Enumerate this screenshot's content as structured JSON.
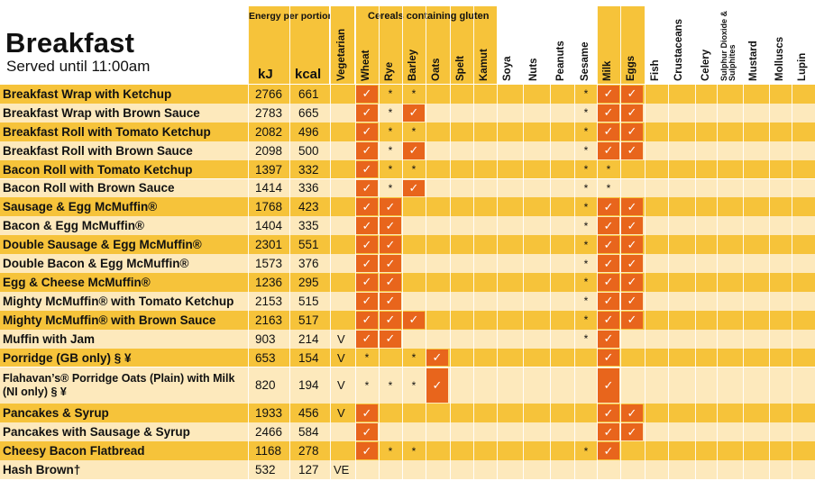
{
  "page": {
    "title": "Breakfast",
    "subtitle": "Served until 11:00am",
    "energy_header": "Energy per portion",
    "gluten_header": "Cereals containing gluten",
    "kj_label": "kJ",
    "kcal_label": "kcal",
    "vegetarian_label": "Vegetarian"
  },
  "allergens": [
    "Wheat",
    "Rye",
    "Barley",
    "Oats",
    "Spelt",
    "Kamut",
    "Soya",
    "Nuts",
    "Peanuts",
    "Sesame",
    "Milk",
    "Eggs",
    "Fish",
    "Crustaceans",
    "Celery",
    "Sulphur Dioxide & Sulphites",
    "Mustard",
    "Molluscs",
    "Lupin"
  ],
  "symbols": {
    "tick": "✓",
    "star": "*"
  },
  "items": [
    {
      "name": "Breakfast Wrap with Ketchup",
      "kj": "2766",
      "kcal": "661",
      "veg": "",
      "marks": [
        "T",
        "*",
        "*",
        "",
        "",
        "",
        "",
        "",
        "",
        "*",
        "T",
        "T",
        "",
        "",
        "",
        "",
        "",
        "",
        ""
      ]
    },
    {
      "name": "Breakfast Wrap with Brown Sauce",
      "kj": "2783",
      "kcal": "665",
      "veg": "",
      "marks": [
        "T",
        "*",
        "T",
        "",
        "",
        "",
        "",
        "",
        "",
        "*",
        "T",
        "T",
        "",
        "",
        "",
        "",
        "",
        "",
        ""
      ]
    },
    {
      "name": "Breakfast Roll with Tomato Ketchup",
      "kj": "2082",
      "kcal": "496",
      "veg": "",
      "marks": [
        "T",
        "*",
        "*",
        "",
        "",
        "",
        "",
        "",
        "",
        "*",
        "T",
        "T",
        "",
        "",
        "",
        "",
        "",
        "",
        ""
      ]
    },
    {
      "name": "Breakfast Roll with Brown Sauce",
      "kj": "2098",
      "kcal": "500",
      "veg": "",
      "marks": [
        "T",
        "*",
        "T",
        "",
        "",
        "",
        "",
        "",
        "",
        "*",
        "T",
        "T",
        "",
        "",
        "",
        "",
        "",
        "",
        ""
      ]
    },
    {
      "name": "Bacon Roll with Tomato Ketchup",
      "kj": "1397",
      "kcal": "332",
      "veg": "",
      "marks": [
        "T",
        "*",
        "*",
        "",
        "",
        "",
        "",
        "",
        "",
        "*",
        "*",
        "",
        "",
        "",
        "",
        "",
        "",
        "",
        ""
      ]
    },
    {
      "name": "Bacon Roll with Brown Sauce",
      "kj": "1414",
      "kcal": "336",
      "veg": "",
      "marks": [
        "T",
        "*",
        "T",
        "",
        "",
        "",
        "",
        "",
        "",
        "*",
        "*",
        "",
        "",
        "",
        "",
        "",
        "",
        "",
        ""
      ]
    },
    {
      "name": "Sausage & Egg McMuffin®",
      "kj": "1768",
      "kcal": "423",
      "veg": "",
      "marks": [
        "T",
        "T",
        "",
        "",
        "",
        "",
        "",
        "",
        "",
        "*",
        "T",
        "T",
        "",
        "",
        "",
        "",
        "",
        "",
        ""
      ]
    },
    {
      "name": "Bacon & Egg McMuffin®",
      "kj": "1404",
      "kcal": "335",
      "veg": "",
      "marks": [
        "T",
        "T",
        "",
        "",
        "",
        "",
        "",
        "",
        "",
        "*",
        "T",
        "T",
        "",
        "",
        "",
        "",
        "",
        "",
        ""
      ]
    },
    {
      "name": "Double Sausage & Egg McMuffin®",
      "kj": "2301",
      "kcal": "551",
      "veg": "",
      "marks": [
        "T",
        "T",
        "",
        "",
        "",
        "",
        "",
        "",
        "",
        "*",
        "T",
        "T",
        "",
        "",
        "",
        "",
        "",
        "",
        ""
      ]
    },
    {
      "name": "Double Bacon & Egg McMuffin®",
      "kj": "1573",
      "kcal": "376",
      "veg": "",
      "marks": [
        "T",
        "T",
        "",
        "",
        "",
        "",
        "",
        "",
        "",
        "*",
        "T",
        "T",
        "",
        "",
        "",
        "",
        "",
        "",
        ""
      ]
    },
    {
      "name": "Egg & Cheese McMuffin®",
      "kj": "1236",
      "kcal": "295",
      "veg": "",
      "marks": [
        "T",
        "T",
        "",
        "",
        "",
        "",
        "",
        "",
        "",
        "*",
        "T",
        "T",
        "",
        "",
        "",
        "",
        "",
        "",
        ""
      ]
    },
    {
      "name": "Mighty McMuffin® with Tomato Ketchup",
      "kj": "2153",
      "kcal": "515",
      "veg": "",
      "marks": [
        "T",
        "T",
        "",
        "",
        "",
        "",
        "",
        "",
        "",
        "*",
        "T",
        "T",
        "",
        "",
        "",
        "",
        "",
        "",
        ""
      ]
    },
    {
      "name": "Mighty McMuffin® with Brown Sauce",
      "kj": "2163",
      "kcal": "517",
      "veg": "",
      "marks": [
        "T",
        "T",
        "T",
        "",
        "",
        "",
        "",
        "",
        "",
        "*",
        "T",
        "T",
        "",
        "",
        "",
        "",
        "",
        "",
        ""
      ]
    },
    {
      "name": "Muffin with Jam",
      "kj": "903",
      "kcal": "214",
      "veg": "V",
      "marks": [
        "T",
        "T",
        "",
        "",
        "",
        "",
        "",
        "",
        "",
        "*",
        "T",
        "",
        "",
        "",
        "",
        "",
        "",
        "",
        ""
      ]
    },
    {
      "name": "Porridge (GB only) § ¥",
      "kj": "653",
      "kcal": "154",
      "veg": "V",
      "marks": [
        "*",
        "",
        "*",
        "T",
        "",
        "",
        "",
        "",
        "",
        "",
        "T",
        "",
        "",
        "",
        "",
        "",
        "",
        "",
        ""
      ]
    },
    {
      "name": "Flahavan’s® Porridge Oats (Plain) with Milk (NI only) § ¥",
      "kj": "820",
      "kcal": "194",
      "veg": "V",
      "marks": [
        "*",
        "*",
        "*",
        "T",
        "",
        "",
        "",
        "",
        "",
        "",
        "T",
        "",
        "",
        "",
        "",
        "",
        "",
        "",
        ""
      ]
    },
    {
      "name": "Pancakes & Syrup",
      "kj": "1933",
      "kcal": "456",
      "veg": "V",
      "marks": [
        "T",
        "",
        "",
        "",
        "",
        "",
        "",
        "",
        "",
        "",
        "T",
        "T",
        "",
        "",
        "",
        "",
        "",
        "",
        ""
      ]
    },
    {
      "name": "Pancakes with Sausage & Syrup",
      "kj": "2466",
      "kcal": "584",
      "veg": "",
      "marks": [
        "T",
        "",
        "",
        "",
        "",
        "",
        "",
        "",
        "",
        "",
        "T",
        "T",
        "",
        "",
        "",
        "",
        "",
        "",
        ""
      ]
    },
    {
      "name": "Cheesy Bacon Flatbread",
      "kj": "1168",
      "kcal": "278",
      "veg": "",
      "marks": [
        "T",
        "*",
        "*",
        "",
        "",
        "",
        "",
        "",
        "",
        "*",
        "T",
        "",
        "",
        "",
        "",
        "",
        "",
        "",
        ""
      ]
    },
    {
      "name": "Hash Brown†",
      "kj": "532",
      "kcal": "127",
      "veg": "VE",
      "marks": [
        "",
        "",
        "",
        "",
        "",
        "",
        "",
        "",
        "",
        "",
        "",
        "",
        "",
        "",
        "",
        "",
        "",
        "",
        ""
      ]
    }
  ]
}
